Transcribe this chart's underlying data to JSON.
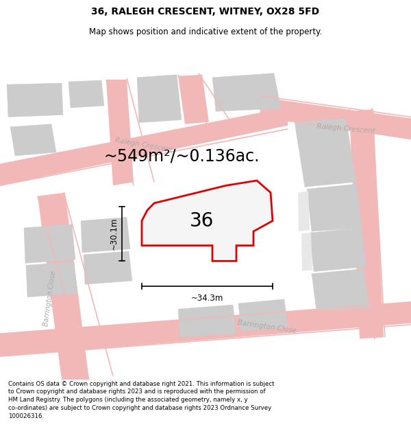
{
  "title": "36, RALEGH CRESCENT, WITNEY, OX28 5FD",
  "subtitle": "Map shows position and indicative extent of the property.",
  "footer": "Contains OS data © Crown copyright and database right 2021. This information is subject\nto Crown copyright and database rights 2023 and is reproduced with the permission of\nHM Land Registry. The polygons (including the associated geometry, namely x, y\nco-ordinates) are subject to Crown copyright and database rights 2023 Ordnance Survey\n100026316.",
  "area_text": "~549m²/~0.136ac.",
  "label_36": "36",
  "dim_height": "~30.1m",
  "dim_width": "~34.3m",
  "bg_color": "#ffffff",
  "road_color": "#f2b8b8",
  "building_color": "#cccccc",
  "highlight_color": "#e00000",
  "street_text_color": "#aaaaaa",
  "title_fontsize": 10,
  "subtitle_fontsize": 8.5,
  "footer_fontsize": 6.2,
  "area_fontsize": 17,
  "label_fontsize": 20,
  "dim_fontsize": 8.5,
  "street_fontsize": 7.5
}
